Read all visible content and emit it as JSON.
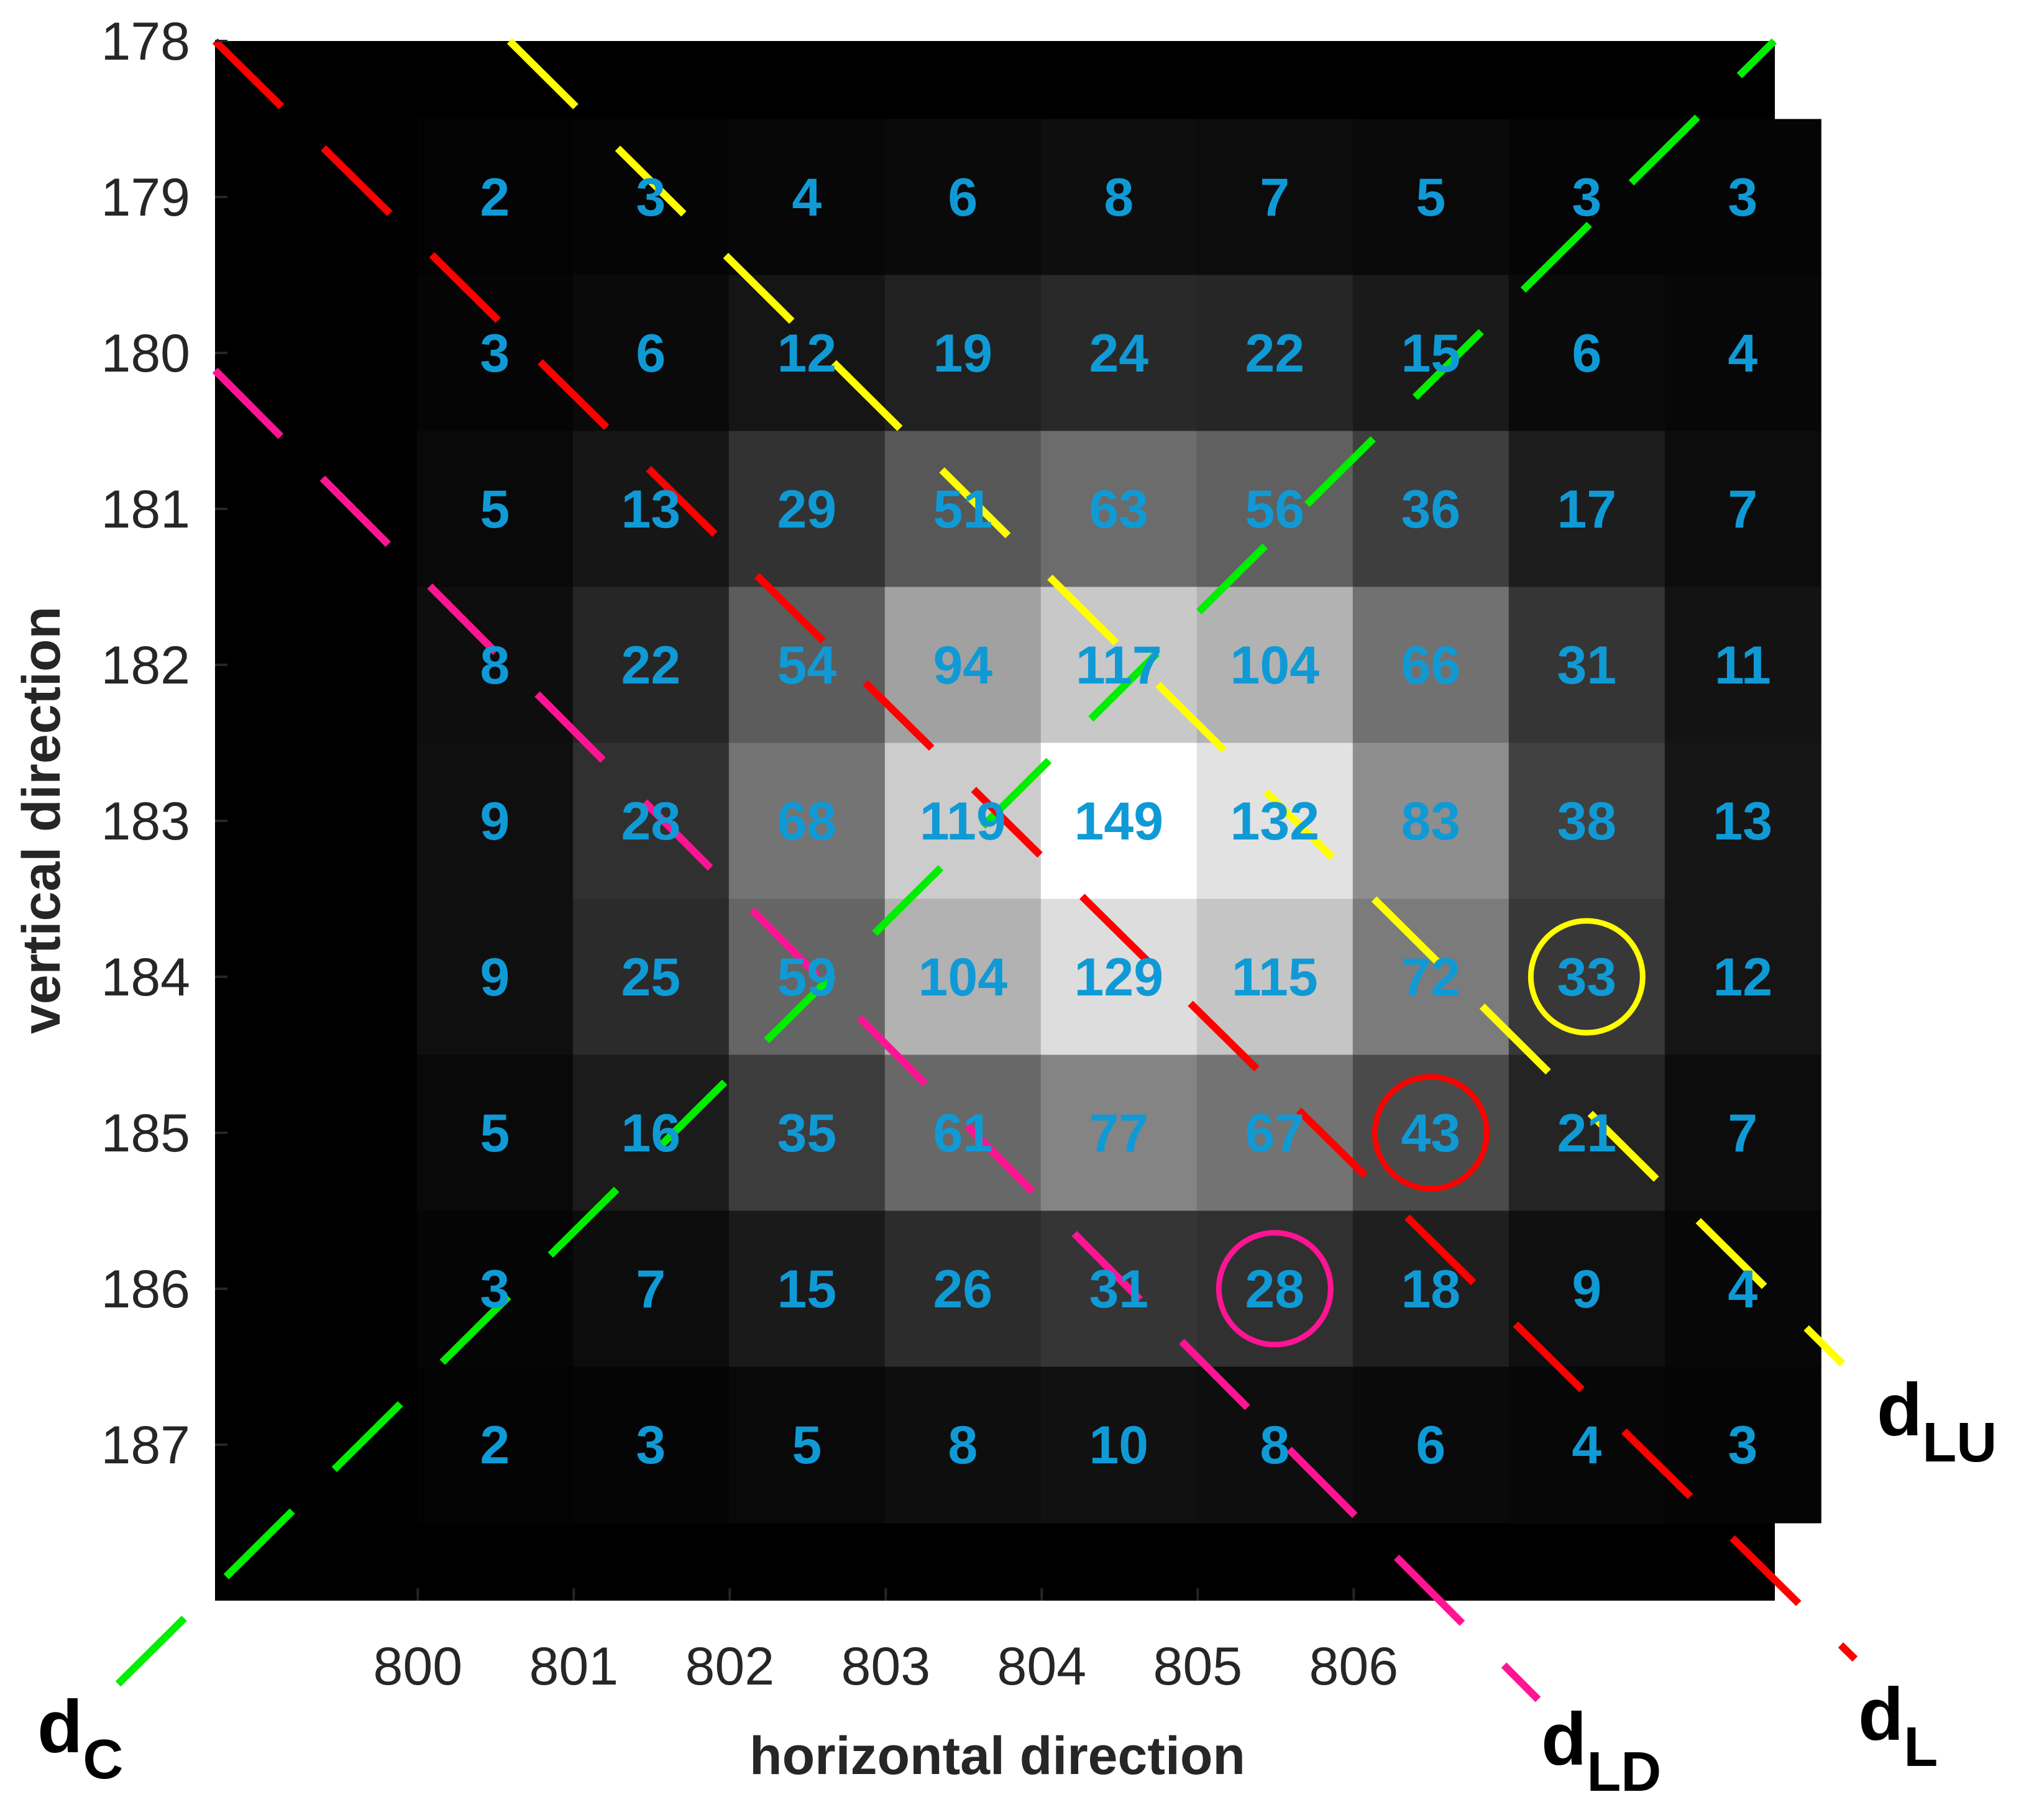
{
  "chart_data": {
    "type": "heatmap",
    "xlabel": "horizontal direction",
    "ylabel": "vertical direction",
    "x_ticks": [
      "800",
      "801",
      "802",
      "803",
      "804",
      "805",
      "806"
    ],
    "y_ticks": [
      "178",
      "179",
      "180",
      "181",
      "182",
      "183",
      "184",
      "185",
      "186",
      "187"
    ],
    "columns": [
      800,
      801,
      802,
      803,
      804,
      805,
      806,
      807,
      808
    ],
    "rows": [
      179,
      180,
      181,
      182,
      183,
      184,
      185,
      186,
      187
    ],
    "x_range": [
      798.7,
      808.7
    ],
    "y_range": [
      178,
      188
    ],
    "colormap": "gray",
    "values": [
      [
        2,
        3,
        4,
        6,
        8,
        7,
        5,
        3,
        3
      ],
      [
        3,
        6,
        12,
        19,
        24,
        22,
        15,
        6,
        4
      ],
      [
        5,
        13,
        29,
        51,
        63,
        56,
        36,
        17,
        7
      ],
      [
        8,
        22,
        54,
        94,
        117,
        104,
        66,
        31,
        11
      ],
      [
        9,
        28,
        68,
        119,
        149,
        132,
        83,
        38,
        13
      ],
      [
        9,
        25,
        59,
        104,
        129,
        115,
        72,
        33,
        12
      ],
      [
        5,
        16,
        35,
        61,
        77,
        67,
        43,
        21,
        7
      ],
      [
        3,
        7,
        15,
        26,
        31,
        28,
        18,
        9,
        4
      ],
      [
        2,
        3,
        5,
        8,
        10,
        8,
        6,
        4,
        3
      ]
    ],
    "lines": [
      {
        "name": "dC",
        "main": "d",
        "sub": "C",
        "color": "#00ee00",
        "direction": "anti-diagonal through (804, 183)"
      },
      {
        "name": "dL",
        "main": "d",
        "sub": "L",
        "color": "#ff0000",
        "direction": "diagonal through (804, 183)"
      },
      {
        "name": "dLU",
        "main": "d",
        "sub": "LU",
        "color": "#ffff00",
        "direction": "diagonal through (805, 182)"
      },
      {
        "name": "dLD",
        "main": "d",
        "sub": "LD",
        "color": "#ff1493",
        "direction": "diagonal through (803, 184)"
      }
    ],
    "circled_cells": [
      {
        "x": 807,
        "y": 184,
        "value": 33,
        "color": "#ffff00"
      },
      {
        "x": 806,
        "y": 185,
        "value": 43,
        "color": "#ff0000"
      },
      {
        "x": 805,
        "y": 186,
        "value": 28,
        "color": "#ff1493"
      }
    ]
  }
}
